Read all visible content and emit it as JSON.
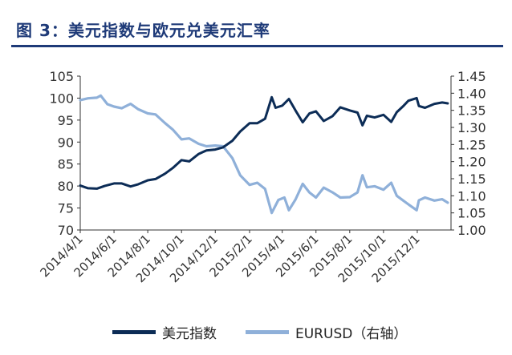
{
  "title": "图 3：美元指数与欧元兑美元汇率",
  "colors": {
    "title": "#1e3a78",
    "dxy": "#0c2c56",
    "eurusd": "#8fb0d9",
    "axis": "#333333"
  },
  "chart_data": {
    "type": "line",
    "title": "图 3：美元指数与欧元兑美元汇率",
    "xlabel": "",
    "ylabel": "",
    "y2label": "",
    "x_ticks": [
      "2014/4/1",
      "2014/6/1",
      "2014/8/1",
      "2014/10/1",
      "2014/12/1",
      "2015/2/1",
      "2015/4/1",
      "2015/6/1",
      "2015/8/1",
      "2015/10/1",
      "2015/12/1"
    ],
    "x_range": [
      "2014-04-01",
      "2016-01-31"
    ],
    "ylim_left": [
      70,
      105
    ],
    "y_ticks_left": [
      "70",
      "75",
      "80",
      "85",
      "90",
      "95",
      "100",
      "105"
    ],
    "ylim_right": [
      1.0,
      1.45
    ],
    "y_ticks_right": [
      "1.00",
      "1.05",
      "1.10",
      "1.15",
      "1.20",
      "1.25",
      "1.30",
      "1.35",
      "1.40",
      "1.45"
    ],
    "grid": false,
    "legend_position": "bottom",
    "series": [
      {
        "name": "美元指数",
        "axis": "left",
        "color": "#0c2c56",
        "points": [
          [
            "2014-04-01",
            80.1
          ],
          [
            "2014-04-15",
            79.5
          ],
          [
            "2014-05-01",
            79.4
          ],
          [
            "2014-05-15",
            80.0
          ],
          [
            "2014-06-01",
            80.6
          ],
          [
            "2014-06-15",
            80.6
          ],
          [
            "2014-07-01",
            79.9
          ],
          [
            "2014-07-15",
            80.4
          ],
          [
            "2014-08-01",
            81.3
          ],
          [
            "2014-08-15",
            81.6
          ],
          [
            "2014-09-01",
            82.8
          ],
          [
            "2014-09-15",
            84.1
          ],
          [
            "2014-10-01",
            85.9
          ],
          [
            "2014-10-15",
            85.6
          ],
          [
            "2014-11-01",
            87.3
          ],
          [
            "2014-11-15",
            88.1
          ],
          [
            "2014-12-01",
            88.3
          ],
          [
            "2014-12-15",
            88.8
          ],
          [
            "2015-01-01",
            90.3
          ],
          [
            "2015-01-15",
            92.4
          ],
          [
            "2015-02-01",
            94.3
          ],
          [
            "2015-02-15",
            94.3
          ],
          [
            "2015-03-01",
            95.3
          ],
          [
            "2015-03-13",
            100.2
          ],
          [
            "2015-03-20",
            97.8
          ],
          [
            "2015-04-01",
            98.3
          ],
          [
            "2015-04-13",
            99.8
          ],
          [
            "2015-04-25",
            97.2
          ],
          [
            "2015-05-08",
            94.5
          ],
          [
            "2015-05-20",
            96.5
          ],
          [
            "2015-06-01",
            97.0
          ],
          [
            "2015-06-15",
            94.8
          ],
          [
            "2015-07-01",
            95.9
          ],
          [
            "2015-07-15",
            97.9
          ],
          [
            "2015-08-01",
            97.2
          ],
          [
            "2015-08-15",
            96.7
          ],
          [
            "2015-08-24",
            93.8
          ],
          [
            "2015-09-01",
            96.0
          ],
          [
            "2015-09-15",
            95.6
          ],
          [
            "2015-10-01",
            96.2
          ],
          [
            "2015-10-15",
            94.6
          ],
          [
            "2015-10-25",
            96.8
          ],
          [
            "2015-11-05",
            98.1
          ],
          [
            "2015-11-15",
            99.4
          ],
          [
            "2015-11-30",
            100.0
          ],
          [
            "2015-12-04",
            98.2
          ],
          [
            "2015-12-15",
            97.8
          ],
          [
            "2016-01-01",
            98.7
          ],
          [
            "2016-01-15",
            99.0
          ],
          [
            "2016-01-25",
            98.8
          ]
        ]
      },
      {
        "name": "EURUSD（右轴）",
        "axis": "right",
        "color": "#8fb0d9",
        "points": [
          [
            "2014-04-01",
            1.38
          ],
          [
            "2014-04-15",
            1.385
          ],
          [
            "2014-05-01",
            1.387
          ],
          [
            "2014-05-08",
            1.393
          ],
          [
            "2014-05-20",
            1.368
          ],
          [
            "2014-06-01",
            1.361
          ],
          [
            "2014-06-15",
            1.356
          ],
          [
            "2014-07-01",
            1.369
          ],
          [
            "2014-07-15",
            1.353
          ],
          [
            "2014-08-01",
            1.341
          ],
          [
            "2014-08-15",
            1.338
          ],
          [
            "2014-09-01",
            1.313
          ],
          [
            "2014-09-15",
            1.294
          ],
          [
            "2014-10-01",
            1.265
          ],
          [
            "2014-10-15",
            1.268
          ],
          [
            "2014-11-01",
            1.252
          ],
          [
            "2014-11-15",
            1.245
          ],
          [
            "2014-12-01",
            1.247
          ],
          [
            "2014-12-15",
            1.245
          ],
          [
            "2015-01-01",
            1.21
          ],
          [
            "2015-01-15",
            1.16
          ],
          [
            "2015-02-01",
            1.132
          ],
          [
            "2015-02-15",
            1.138
          ],
          [
            "2015-03-01",
            1.12
          ],
          [
            "2015-03-13",
            1.05
          ],
          [
            "2015-03-25",
            1.088
          ],
          [
            "2015-04-05",
            1.095
          ],
          [
            "2015-04-13",
            1.058
          ],
          [
            "2015-04-25",
            1.089
          ],
          [
            "2015-05-08",
            1.135
          ],
          [
            "2015-05-20",
            1.11
          ],
          [
            "2015-06-01",
            1.095
          ],
          [
            "2015-06-15",
            1.124
          ],
          [
            "2015-07-01",
            1.11
          ],
          [
            "2015-07-15",
            1.095
          ],
          [
            "2015-08-01",
            1.096
          ],
          [
            "2015-08-15",
            1.11
          ],
          [
            "2015-08-24",
            1.16
          ],
          [
            "2015-09-01",
            1.125
          ],
          [
            "2015-09-15",
            1.128
          ],
          [
            "2015-10-01",
            1.118
          ],
          [
            "2015-10-15",
            1.138
          ],
          [
            "2015-10-25",
            1.1
          ],
          [
            "2015-11-05",
            1.087
          ],
          [
            "2015-11-15",
            1.075
          ],
          [
            "2015-11-30",
            1.058
          ],
          [
            "2015-12-04",
            1.087
          ],
          [
            "2015-12-15",
            1.095
          ],
          [
            "2016-01-01",
            1.086
          ],
          [
            "2016-01-15",
            1.09
          ],
          [
            "2016-01-25",
            1.08
          ]
        ]
      }
    ]
  }
}
